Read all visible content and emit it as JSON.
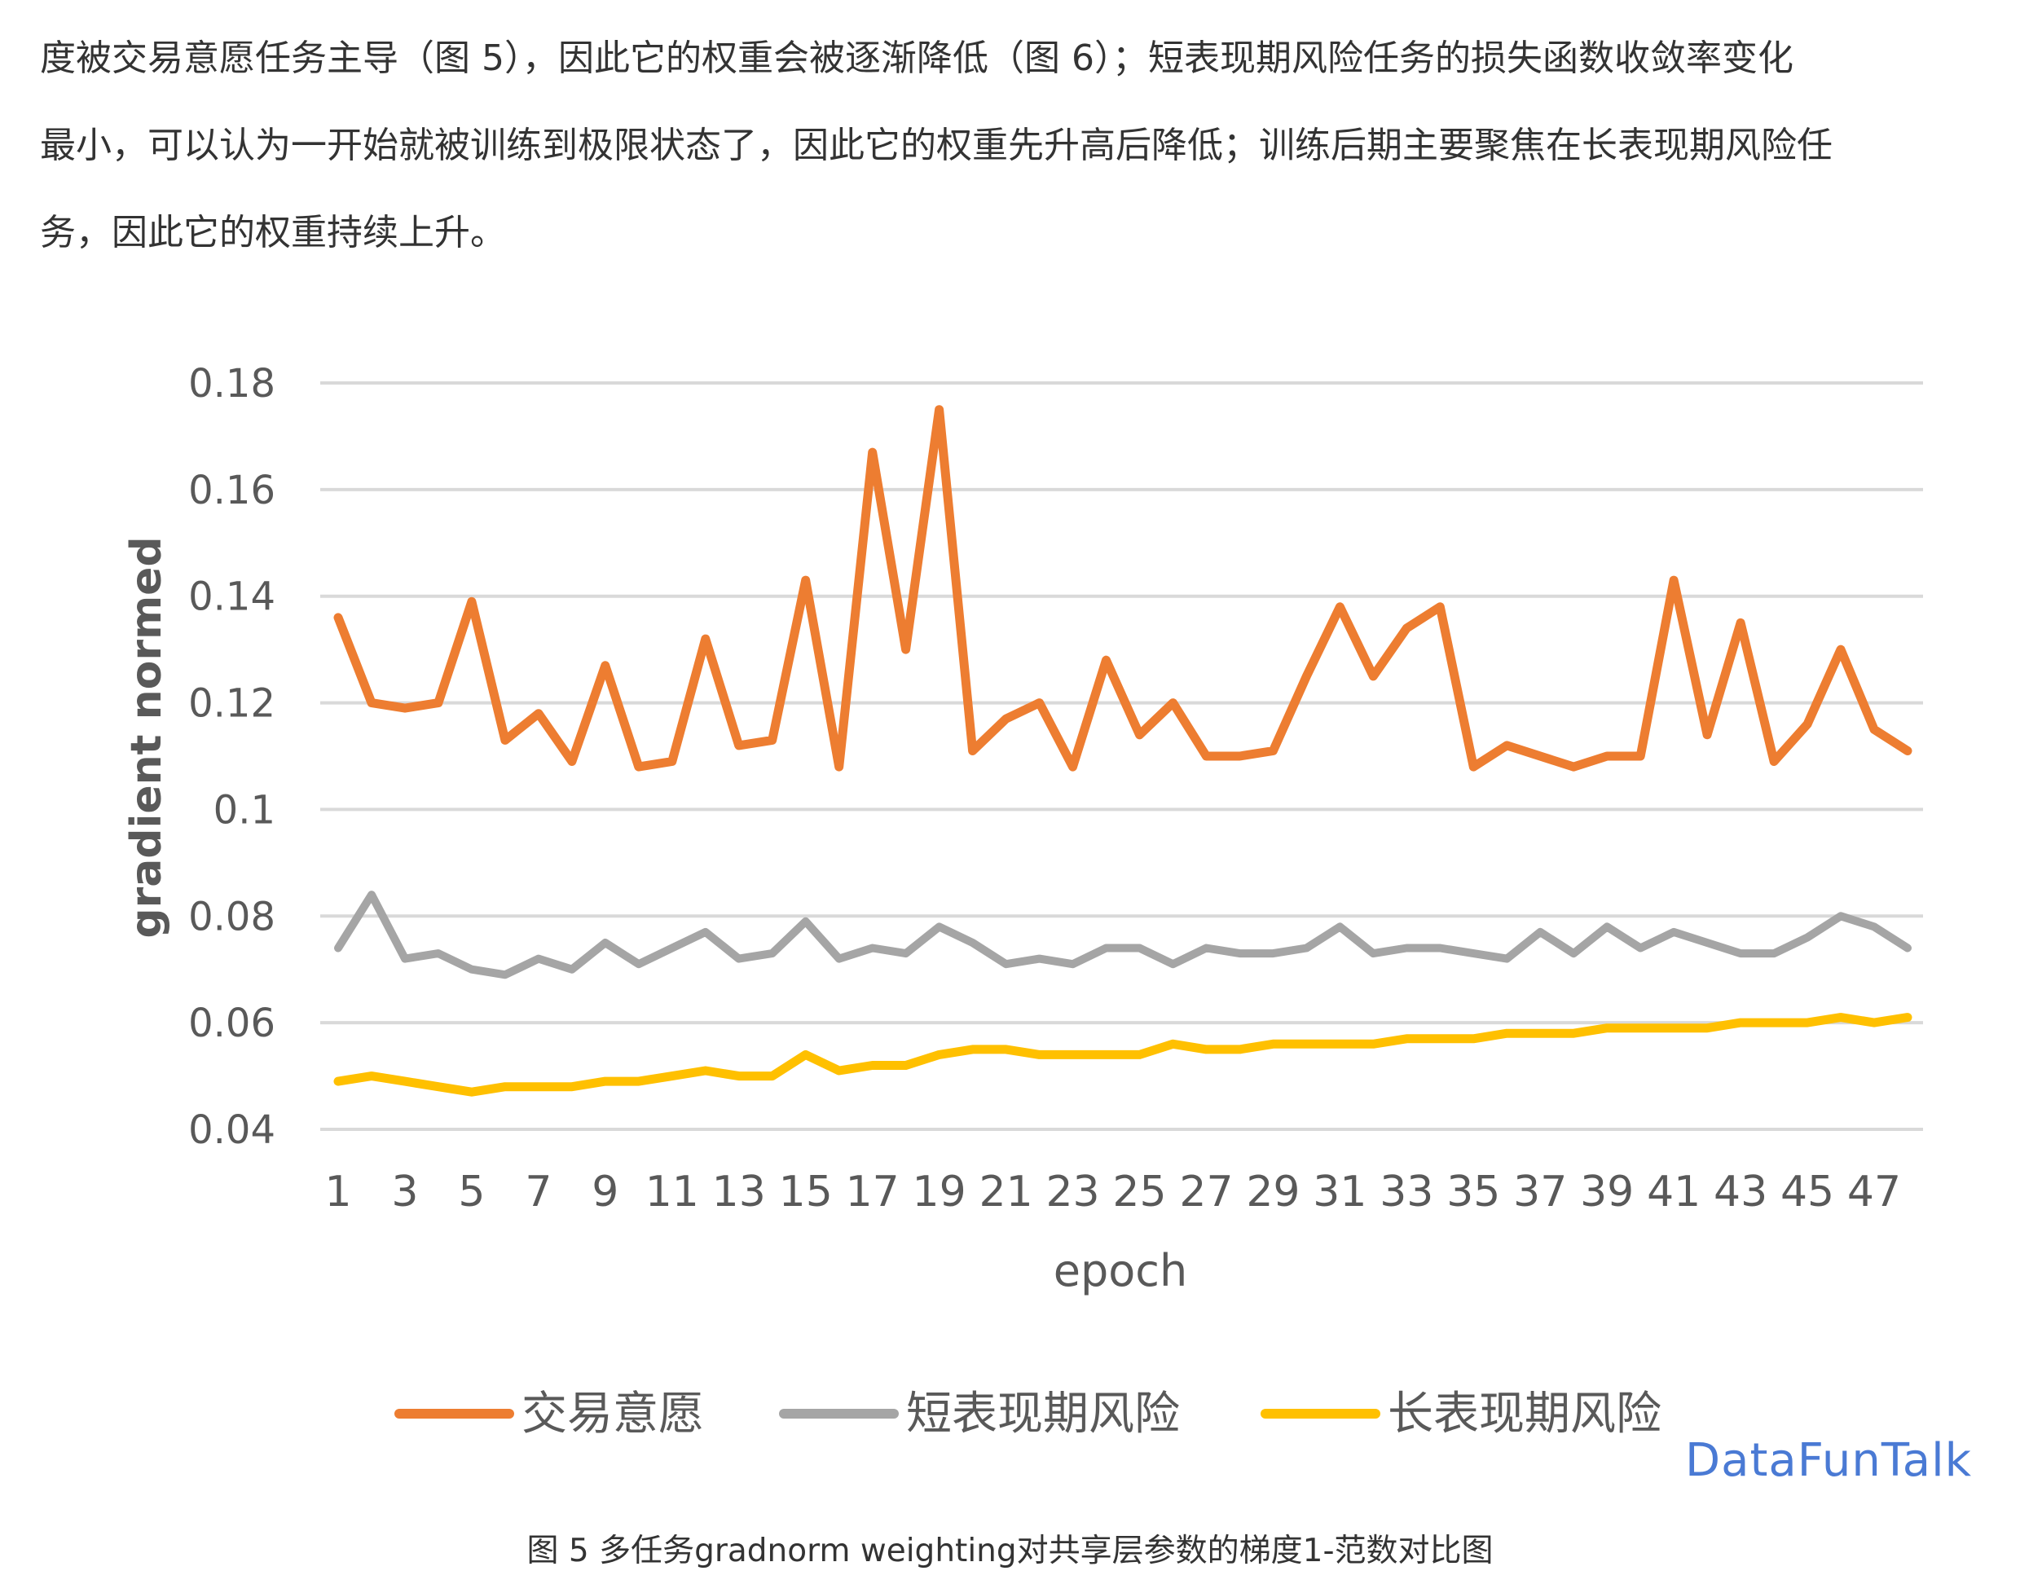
{
  "paragraph": {
    "lines": [
      "度被交易意愿任务主导（图 5），因此它的权重会被逐渐降低（图 6）；短表现期风险任务的损失函数收敛率变化",
      "最小，可以认为一开始就被训练到极限状态了，因此它的权重先升高后降低；训练后期主要聚焦在长表现期风险任",
      "务，因此它的权重持续上升。"
    ]
  },
  "caption": "图 5  多任务gradnorm weighting对共享层参数的梯度1-范数对比图",
  "watermark": "DataFunTalk",
  "colors": {
    "series1": "#ED7D31",
    "series2": "#A5A5A5",
    "series3": "#FFC000",
    "grid": "#D9D9D9",
    "axis_text": "#595959"
  },
  "chart_data": {
    "type": "line",
    "xlabel": "epoch",
    "ylabel": "gradient normed",
    "ylim": [
      0.04,
      0.18
    ],
    "yticks": [
      "0.04",
      "0.06",
      "0.08",
      "0.1",
      "0.12",
      "0.14",
      "0.16",
      "0.18"
    ],
    "yticks_values": [
      0.04,
      0.06,
      0.08,
      0.1,
      0.12,
      0.14,
      0.16,
      0.18
    ],
    "xticks": [
      "1",
      "3",
      "5",
      "7",
      "9",
      "11",
      "13",
      "15",
      "17",
      "19",
      "21",
      "23",
      "25",
      "27",
      "29",
      "31",
      "33",
      "35",
      "37",
      "39",
      "41",
      "43",
      "45",
      "47"
    ],
    "x": [
      1,
      2,
      3,
      4,
      5,
      6,
      7,
      8,
      9,
      10,
      11,
      12,
      13,
      14,
      15,
      16,
      17,
      18,
      19,
      20,
      21,
      22,
      23,
      24,
      25,
      26,
      27,
      28,
      29,
      30,
      31,
      32,
      33,
      34,
      35,
      36,
      37,
      38,
      39,
      40,
      41,
      42,
      43,
      44,
      45,
      46,
      47,
      48
    ],
    "grid": true,
    "legend_position": "bottom",
    "series": [
      {
        "name": "交易意愿",
        "values": [
          0.136,
          0.12,
          0.119,
          0.12,
          0.139,
          0.113,
          0.118,
          0.109,
          0.127,
          0.108,
          0.109,
          0.132,
          0.112,
          0.113,
          0.143,
          0.108,
          0.167,
          0.13,
          0.175,
          0.111,
          0.117,
          0.12,
          0.108,
          0.128,
          0.114,
          0.12,
          0.11,
          0.11,
          0.111,
          0.125,
          0.138,
          0.125,
          0.134,
          0.138,
          0.108,
          0.112,
          0.11,
          0.108,
          0.11,
          0.11,
          0.143,
          0.114,
          0.135,
          0.109,
          0.116,
          0.13,
          0.115,
          0.111
        ]
      },
      {
        "name": "短表现期风险",
        "values": [
          0.074,
          0.084,
          0.072,
          0.073,
          0.07,
          0.069,
          0.072,
          0.07,
          0.075,
          0.071,
          0.074,
          0.077,
          0.072,
          0.073,
          0.079,
          0.072,
          0.074,
          0.073,
          0.078,
          0.075,
          0.071,
          0.072,
          0.071,
          0.074,
          0.074,
          0.071,
          0.074,
          0.073,
          0.073,
          0.074,
          0.078,
          0.073,
          0.074,
          0.074,
          0.073,
          0.072,
          0.077,
          0.073,
          0.078,
          0.074,
          0.077,
          0.075,
          0.073,
          0.073,
          0.076,
          0.08,
          0.078,
          0.074
        ]
      },
      {
        "name": "长表现期风险",
        "values": [
          0.049,
          0.05,
          0.049,
          0.048,
          0.047,
          0.048,
          0.048,
          0.048,
          0.049,
          0.049,
          0.05,
          0.051,
          0.05,
          0.05,
          0.054,
          0.051,
          0.052,
          0.052,
          0.054,
          0.055,
          0.055,
          0.054,
          0.054,
          0.054,
          0.054,
          0.056,
          0.055,
          0.055,
          0.056,
          0.056,
          0.056,
          0.056,
          0.057,
          0.057,
          0.057,
          0.058,
          0.058,
          0.058,
          0.059,
          0.059,
          0.059,
          0.059,
          0.06,
          0.06,
          0.06,
          0.061,
          0.06,
          0.061
        ]
      }
    ]
  }
}
